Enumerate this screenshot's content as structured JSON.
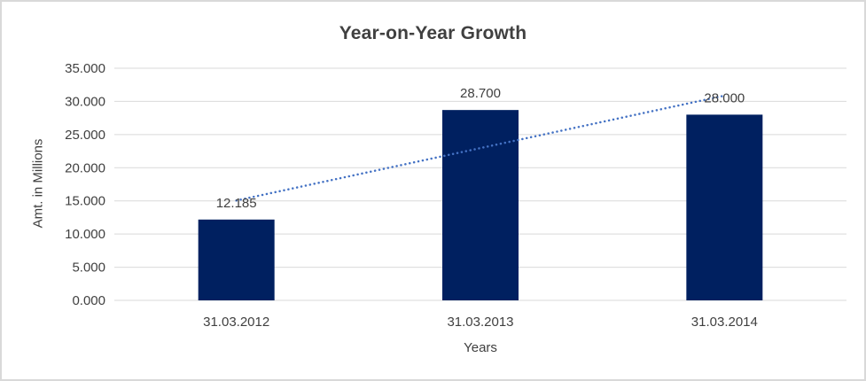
{
  "window": {
    "background": "#ffffff",
    "border_color": "#d9d9d9"
  },
  "chart_data": {
    "type": "bar",
    "title": "Year-on-Year Growth",
    "xlabel": "Years",
    "ylabel": "Amt. in Millions",
    "categories": [
      "31.03.2012",
      "31.03.2013",
      "31.03.2014"
    ],
    "values": [
      12.185,
      28.7,
      28.0
    ],
    "data_labels": [
      "12.185",
      "28.700",
      "28.000"
    ],
    "ylim": [
      0,
      35
    ],
    "ytick_step": 5,
    "ytick_labels": [
      "0.000",
      "5.000",
      "10.000",
      "15.000",
      "20.000",
      "25.000",
      "30.000",
      "35.000"
    ],
    "grid": true,
    "legend": false,
    "trendline": {
      "type": "linear",
      "style": "dotted",
      "color": "#4472C4"
    },
    "colors": {
      "bar": "#002060",
      "gridline": "#d9d9d9",
      "axis_text": "#404040",
      "title_text": "#404040"
    }
  }
}
